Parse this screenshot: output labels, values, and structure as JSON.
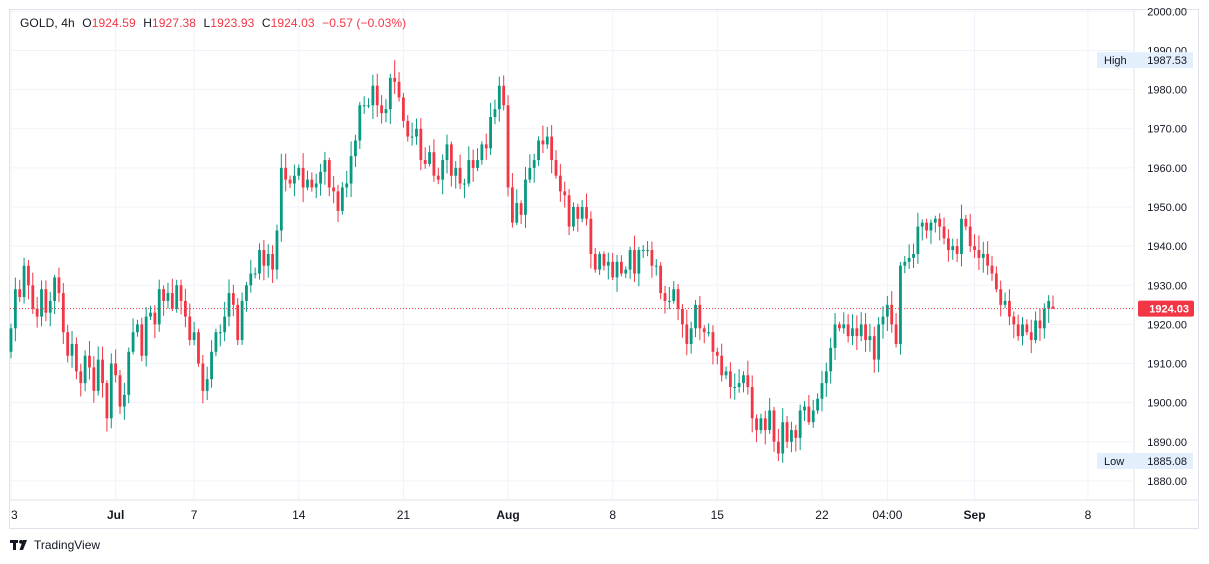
{
  "legend": {
    "symbol": "GOLD, 4h",
    "open_label": "O",
    "open": "1924.59",
    "high_label": "H",
    "high": "1927.38",
    "low_label": "L",
    "low": "1923.93",
    "close_label": "C",
    "close": "1924.03",
    "change": "−0.57 (−0.03%)"
  },
  "footer": {
    "brand": "TradingView"
  },
  "colors": {
    "up": "#089981",
    "down": "#f23645",
    "grid": "#f0f3fa",
    "text": "#131722",
    "axis_bg": "#e3effd"
  },
  "chart_data": {
    "type": "candlestick",
    "y_ticks": [
      "1880.00",
      "1890.00",
      "1900.00",
      "1910.00",
      "1920.00",
      "1930.00",
      "1940.00",
      "1950.00",
      "1960.00",
      "1970.00",
      "1980.00",
      "1990.00",
      "2000.00"
    ],
    "ylim": [
      1877,
      2000.5
    ],
    "x_ticks": [
      {
        "label": "3",
        "i": 0
      },
      {
        "label": "Jul",
        "i": 24
      },
      {
        "label": "7",
        "i": 42
      },
      {
        "label": "14",
        "i": 66
      },
      {
        "label": "21",
        "i": 90
      },
      {
        "label": "Aug",
        "i": 114
      },
      {
        "label": "8",
        "i": 138
      },
      {
        "label": "15",
        "i": 162
      },
      {
        "label": "22",
        "i": 186
      },
      {
        "label": "04:00",
        "i": 201
      },
      {
        "label": "Sep",
        "i": 221
      },
      {
        "label": "8",
        "i": 247
      }
    ],
    "bold_ticks": [
      "Jul",
      "Aug",
      "Sep"
    ],
    "high_marker": {
      "label": "High",
      "value": "1987.53"
    },
    "low_marker": {
      "label": "Low",
      "value": "1885.08"
    },
    "last_price": "1924.03",
    "last_price_value": 1924.03,
    "grid": true,
    "close": [
      1919.0,
      1929.0,
      1927.0,
      1935.0,
      1930.0,
      1924.0,
      1922.0,
      1929.0,
      1923.0,
      1926.0,
      1932.0,
      1928.0,
      1918.0,
      1912.0,
      1915.0,
      1908.0,
      1905.0,
      1912.0,
      1909.0,
      1903.0,
      1911.0,
      1905.0,
      1896.0,
      1910.0,
      1907.0,
      1899.0,
      1902.0,
      1913.0,
      1918.0,
      1920.0,
      1912.0,
      1922.0,
      1923.0,
      1920.0,
      1929.0,
      1926.0,
      1928.0,
      1924.0,
      1930.0,
      1926.0,
      1922.0,
      1916.0,
      1918.0,
      1910.0,
      1903.0,
      1906.0,
      1913.0,
      1918.0,
      1918.0,
      1922.0,
      1928.0,
      1925.0,
      1916.0,
      1926.0,
      1930.0,
      1933.0,
      1933.0,
      1939.0,
      1935.0,
      1938.0,
      1934.0,
      1944.0,
      1960.0,
      1957.0,
      1956.0,
      1958.0,
      1960.0,
      1955.0,
      1957.0,
      1955.0,
      1956.0,
      1959.0,
      1962.0,
      1955.0,
      1954.0,
      1949.0,
      1955.0,
      1956.0,
      1963.0,
      1967.0,
      1976.0,
      1976.0,
      1976.0,
      1981.0,
      1976.0,
      1974.0,
      1975.0,
      1983.0,
      1982.0,
      1978.0,
      1972.0,
      1968.0,
      1968.0,
      1970.0,
      1962.0,
      1961.0,
      1964.0,
      1958.0,
      1957.0,
      1962.0,
      1966.0,
      1958.0,
      1960.0,
      1956.0,
      1956.0,
      1962.0,
      1960.0,
      1962.0,
      1966.0,
      1965.0,
      1973.0,
      1975.0,
      1981.0,
      1976.0,
      1955.0,
      1946.0,
      1951.0,
      1948.0,
      1957.0,
      1960.0,
      1962.0,
      1967.0,
      1966.0,
      1968.0,
      1962.0,
      1958.0,
      1954.0,
      1953.0,
      1945.0,
      1950.0,
      1947.0,
      1950.0,
      1947.0,
      1938.0,
      1934.0,
      1938.0,
      1935.0,
      1936.0,
      1932.0,
      1936.0,
      1933.0,
      1934.0,
      1939.0,
      1933.0,
      1939.0,
      1939.0,
      1939.0,
      1935.0,
      1935.0,
      1928.0,
      1926.0,
      1926.0,
      1929.0,
      1924.0,
      1920.0,
      1915.0,
      1919.0,
      1925.0,
      1919.0,
      1918.0,
      1918.0,
      1913.0,
      1912.0,
      1907.0,
      1908.0,
      1904.0,
      1904.0,
      1905.0,
      1907.0,
      1904.0,
      1896.0,
      1893.0,
      1896.0,
      1893.0,
      1898.0,
      1890.0,
      1887.0,
      1895.0,
      1890.0,
      1893.0,
      1891.0,
      1898.0,
      1899.0,
      1895.0,
      1898.0,
      1901.0,
      1905.0,
      1908.0,
      1914.0,
      1920.0,
      1919.0,
      1920.0,
      1917.0,
      1919.0,
      1917.0,
      1920.0,
      1916.0,
      1917.0,
      1911.0,
      1920.0,
      1922.0,
      1925.0,
      1920.0,
      1915.0,
      1935.0,
      1936.0,
      1937.0,
      1938.0,
      1945.0,
      1946.0,
      1944.0,
      1946.0,
      1947.0,
      1945.0,
      1942.0,
      1939.0,
      1940.0,
      1938.0,
      1947.0,
      1945.0,
      1940.0,
      1939.0,
      1937.0,
      1938.0,
      1935.0,
      1933.0,
      1929.0,
      1925.0,
      1926.0,
      1922.0,
      1920.0,
      1917.0,
      1920.0,
      1918.0,
      1916.0,
      1921.0,
      1919.0,
      1924.0,
      1926.0,
      1924.03
    ]
  }
}
